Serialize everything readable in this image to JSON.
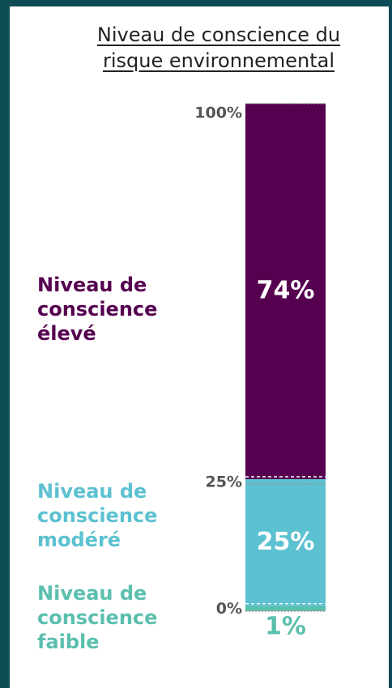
{
  "chart_data": {
    "type": "stacked-bar",
    "title": "Niveau de conscience du risque environnemental",
    "series": [
      {
        "name": "Niveau de conscience faible",
        "color": "#5bbfae",
        "values": [
          1
        ],
        "value_labels": [
          "1%"
        ]
      },
      {
        "name": "Niveau de conscience modéré",
        "color": "#5cc1d1",
        "values": [
          25
        ],
        "value_labels": [
          "25%"
        ]
      },
      {
        "name": "Niveau de conscience élevé",
        "color": "#560050",
        "values": [
          74
        ],
        "value_labels": [
          "74%"
        ]
      }
    ],
    "ylim": [
      0,
      100
    ],
    "yticks": [
      {
        "value": 0,
        "label": "0%"
      },
      {
        "value": 25,
        "label": "25%"
      },
      {
        "value": 100,
        "label": "100%"
      }
    ]
  }
}
